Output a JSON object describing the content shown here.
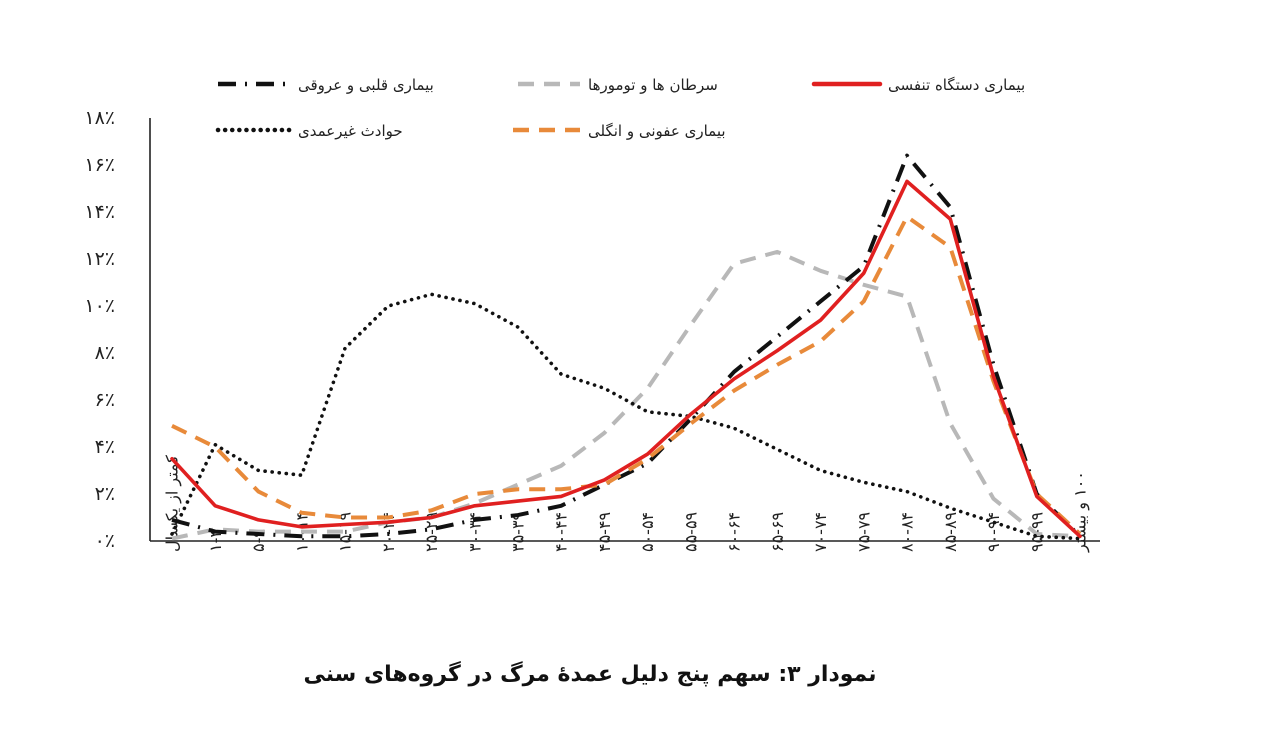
{
  "chart_data": {
    "type": "line",
    "title": "نمودار ۳: سهم پنج دلیل عمدهٔ مرگ در گروه‌های سنی",
    "xlabel": "",
    "ylabel": "",
    "ylim": [
      0,
      18
    ],
    "yticks": [
      0,
      2,
      4,
      6,
      8,
      10,
      12,
      14,
      16,
      18
    ],
    "ytick_labels": [
      "۰٪",
      "۲٪",
      "۴٪",
      "۶٪",
      "۸٪",
      "۱۰٪",
      "۱۲٪",
      "۱۴٪",
      "۱۶٪",
      "۱۸٪"
    ],
    "grid": false,
    "legend_position": "top",
    "categories": [
      "کمتر از یکسال",
      "۱-۴",
      "۵-۹",
      "۱۰-۱۴",
      "۱۵-۱۹",
      "۲۰-۲۴",
      "۲۵-۲۹",
      "۳۰-۳۴",
      "۳۵-۳۹",
      "۴۰-۴۴",
      "۴۵-۴۹",
      "۵۰-۵۴",
      "۵۵-۵۹",
      "۶۰-۶۴",
      "۶۵-۶۹",
      "۷۰-۷۴",
      "۷۵-۷۹",
      "۸۰-۸۴",
      "۸۵-۸۹",
      "۹۰-۹۴",
      "۹۵-۹۹",
      "۱۰۰ و بیشتر"
    ],
    "series": [
      {
        "name": "بیماری قلبی و عروقی",
        "color": "#111111",
        "style": "dashdot",
        "values": [
          0.9,
          0.4,
          0.3,
          0.2,
          0.2,
          0.3,
          0.5,
          0.9,
          1.1,
          1.5,
          2.4,
          3.3,
          5.2,
          7.2,
          8.7,
          10.2,
          11.7,
          16.4,
          14.2,
          7.5,
          2.0,
          0.2
        ]
      },
      {
        "name": "سرطان ها و تومورها",
        "color": "#b8b8b8",
        "style": "dashed",
        "values": [
          0.1,
          0.5,
          0.4,
          0.4,
          0.4,
          0.8,
          1.0,
          1.6,
          2.4,
          3.2,
          4.6,
          6.5,
          9.2,
          11.8,
          12.3,
          11.5,
          10.9,
          10.4,
          5.0,
          1.8,
          0.3,
          0.2
        ]
      },
      {
        "name": "بیماری دستگاه تنفسی",
        "color": "#e02020",
        "style": "solid",
        "values": [
          3.5,
          1.5,
          0.9,
          0.6,
          0.7,
          0.8,
          1.0,
          1.5,
          1.7,
          1.9,
          2.6,
          3.7,
          5.4,
          6.9,
          8.1,
          9.4,
          11.4,
          15.3,
          13.7,
          7.0,
          1.9,
          0.2
        ]
      },
      {
        "name": "حوادث غیرعمدی",
        "color": "#111111",
        "style": "dotted",
        "values": [
          0.3,
          4.1,
          3.0,
          2.8,
          8.2,
          10.0,
          10.5,
          10.1,
          9.1,
          7.1,
          6.5,
          5.5,
          5.3,
          4.8,
          3.9,
          3.0,
          2.5,
          2.1,
          1.4,
          0.8,
          0.2,
          0.1
        ]
      },
      {
        "name": "بیماری عفونی و انگلی",
        "color": "#e88a3a",
        "style": "dashed",
        "values": [
          4.9,
          4.0,
          2.1,
          1.2,
          1.0,
          1.0,
          1.3,
          2.0,
          2.2,
          2.2,
          2.4,
          3.5,
          5.0,
          6.4,
          7.5,
          8.5,
          10.2,
          13.8,
          12.5,
          6.8,
          2.0,
          0.3
        ]
      }
    ]
  }
}
